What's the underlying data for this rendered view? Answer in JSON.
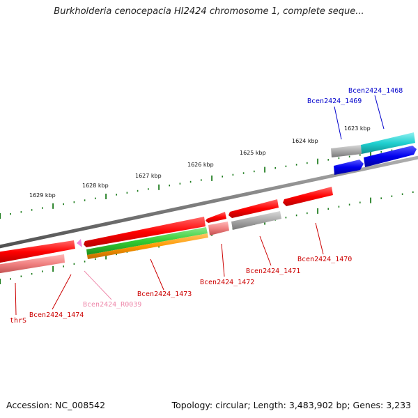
{
  "title": "Burkholderia cenocepacia HI2424 chromosome 1, complete seque...",
  "footer": {
    "accession": "Accession: NC_008542",
    "summary": "Topology: circular; Length: 3,483,902 bp; Genes: 3,233"
  },
  "scale_labels": [
    "1629 kbp",
    "1628 kbp",
    "1627 kbp",
    "1626 kbp",
    "1625 kbp",
    "1624 kbp",
    "1623 kbp"
  ],
  "colors": {
    "backbone": "#808080",
    "ticks": "#1a7a1a",
    "red_cds": "#ff0000",
    "pink_cds": "#f08080",
    "gray_cds": "#a9a9a9",
    "blue_cds": "#0000ee",
    "cyan_cds": "#20d0d0",
    "green_cds": "#33cc33",
    "orange_cds": "#ff9900",
    "label_red": "#cc0000",
    "label_blue": "#0000cc",
    "label_pink": "#ee88aa"
  },
  "gene_labels": [
    {
      "id": "Bcen2424_1468",
      "color": "label_blue"
    },
    {
      "id": "Bcen2424_1469",
      "color": "label_blue"
    },
    {
      "id": "Bcen2424_1470",
      "color": "label_red"
    },
    {
      "id": "Bcen2424_1471",
      "color": "label_red"
    },
    {
      "id": "Bcen2424_1472",
      "color": "label_red"
    },
    {
      "id": "Bcen2424_1473",
      "color": "label_red"
    },
    {
      "id": "Bcen2424_R0039",
      "color": "label_pink"
    },
    {
      "id": "Bcen2424_1474",
      "color": "label_red"
    },
    {
      "id": "thrS",
      "color": "label_red"
    }
  ]
}
